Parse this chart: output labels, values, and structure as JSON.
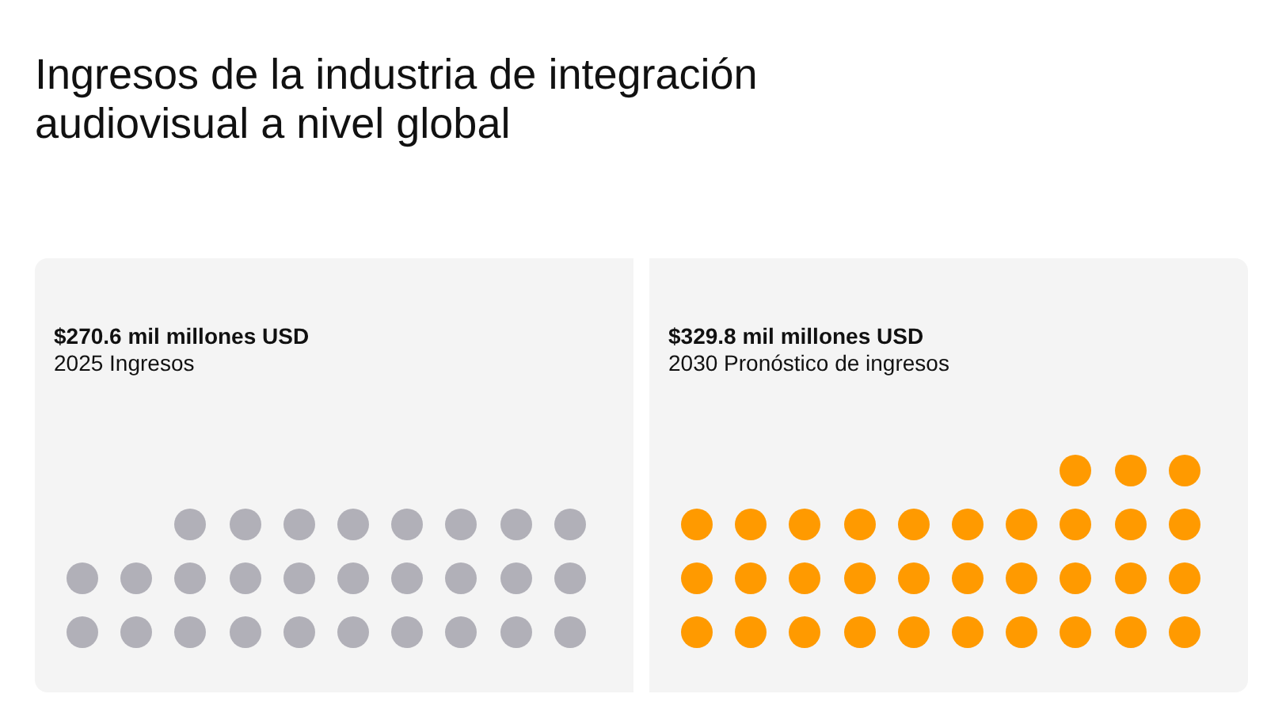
{
  "chart_data": {
    "type": "other",
    "title": "Ingresos de la industria de integración audiovisual a nivel global",
    "categories": [
      "2025 Ingresos",
      "2030 Pronóstico de ingresos"
    ],
    "values": [
      270.6,
      329.8
    ],
    "colors": [
      "#b1b0b8",
      "#ff9a00"
    ],
    "value_labels": [
      "$270.6 mil millones USD",
      "$329.8 mil millones USD"
    ]
  }
}
